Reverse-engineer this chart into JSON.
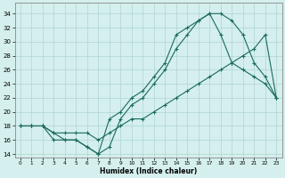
{
  "xlabel": "Humidex (Indice chaleur)",
  "bg_color": "#d4efee",
  "grid_color": "#aed4d4",
  "line_color": "#1a6b5a",
  "xlim": [
    -0.5,
    23.5
  ],
  "ylim": [
    13.5,
    35.5
  ],
  "xticks": [
    0,
    1,
    2,
    3,
    4,
    5,
    6,
    7,
    8,
    9,
    10,
    11,
    12,
    13,
    14,
    15,
    16,
    17,
    18,
    19,
    20,
    21,
    22,
    23
  ],
  "yticks": [
    14,
    16,
    18,
    20,
    22,
    24,
    26,
    28,
    30,
    32,
    34
  ],
  "line1_x": [
    0,
    1,
    2,
    3,
    4,
    5,
    6,
    7,
    8,
    9,
    10,
    11,
    12,
    13,
    14,
    15,
    16,
    17,
    18,
    19,
    20,
    21,
    22,
    23
  ],
  "line1_y": [
    18,
    18,
    18,
    17,
    16,
    16,
    15,
    14,
    15,
    19,
    21,
    22,
    24,
    26,
    29,
    31,
    33,
    34,
    34,
    33,
    31,
    27,
    25,
    22
  ],
  "line2_x": [
    0,
    1,
    2,
    3,
    4,
    5,
    6,
    7,
    8,
    9,
    10,
    11,
    12,
    13,
    14,
    15,
    16,
    17,
    18,
    19,
    20,
    21,
    22,
    23
  ],
  "line2_y": [
    18,
    18,
    18,
    16,
    16,
    16,
    15,
    14,
    19,
    20,
    22,
    23,
    25,
    27,
    31,
    32,
    33,
    34,
    31,
    27,
    26,
    25,
    24,
    22
  ],
  "line3_x": [
    0,
    1,
    2,
    3,
    4,
    5,
    6,
    7,
    8,
    9,
    10,
    11,
    12,
    13,
    14,
    15,
    16,
    17,
    18,
    19,
    20,
    21,
    22,
    23
  ],
  "line3_y": [
    18,
    18,
    18,
    17,
    17,
    17,
    17,
    16,
    17,
    18,
    19,
    19,
    20,
    21,
    22,
    23,
    24,
    25,
    26,
    27,
    28,
    29,
    31,
    22
  ]
}
